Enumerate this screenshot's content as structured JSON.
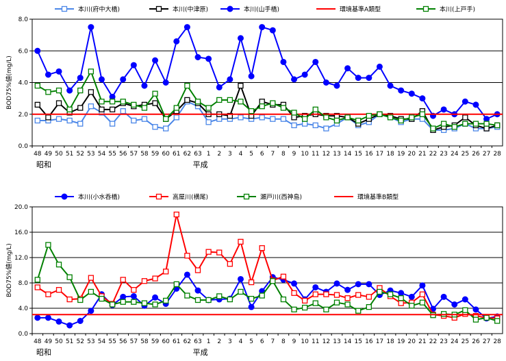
{
  "chart_data": [
    {
      "type": "line",
      "ylabel": "BOD75%値(mg/L)",
      "ylim": [
        0,
        8
      ],
      "yticks": [
        "0.0",
        "2.0",
        "4.0",
        "6.0",
        "8.0"
      ],
      "categories": [
        "48",
        "49",
        "50",
        "51",
        "52",
        "53",
        "54",
        "55",
        "56",
        "57",
        "58",
        "59",
        "60",
        "61",
        "62",
        "63",
        "1",
        "2",
        "3",
        "4",
        "5",
        "6",
        "7",
        "8",
        "9",
        "10",
        "11",
        "12",
        "13",
        "14",
        "15",
        "16",
        "17",
        "18",
        "19",
        "20",
        "21",
        "22",
        "23",
        "24",
        "25",
        "26",
        "27",
        "28"
      ],
      "era_labels": [
        "昭和",
        "平成"
      ],
      "grid": "horizontal",
      "series": [
        {
          "name": "本川(府中大橋)",
          "color": "#4a86e8",
          "marker": "square-open",
          "values": [
            1.6,
            1.6,
            1.7,
            1.6,
            1.4,
            2.5,
            2.1,
            1.4,
            2.2,
            1.6,
            1.7,
            1.2,
            1.1,
            1.8,
            2.8,
            2.5,
            1.5,
            1.7,
            1.7,
            1.8,
            1.7,
            1.8,
            1.7,
            1.7,
            1.3,
            1.4,
            1.3,
            1.1,
            1.4,
            1.8,
            1.3,
            1.5,
            2.0,
            1.8,
            1.5,
            1.7,
            1.7,
            1.0,
            1.0,
            1.1,
            1.4,
            1.1,
            1.1,
            1.2
          ]
        },
        {
          "name": "本川(中津原)",
          "color": "#000000",
          "marker": "square-open",
          "values": [
            2.6,
            1.8,
            2.7,
            2.1,
            2.4,
            3.4,
            2.3,
            2.3,
            2.7,
            2.5,
            2.6,
            2.7,
            1.7,
            2.2,
            2.9,
            2.7,
            2.0,
            2.0,
            1.9,
            3.8,
            1.9,
            2.8,
            2.6,
            2.6,
            1.8,
            1.9,
            2.0,
            1.9,
            1.9,
            1.8,
            1.4,
            1.7,
            2.0,
            1.9,
            1.7,
            1.7,
            2.2,
            1.0,
            1.2,
            1.3,
            1.8,
            1.3,
            1.1,
            1.3
          ]
        },
        {
          "name": "本川(山手橋)",
          "color": "#0000ff",
          "marker": "circle-filled",
          "values": [
            6.0,
            4.5,
            4.7,
            3.5,
            4.3,
            7.5,
            4.2,
            3.1,
            4.2,
            5.1,
            3.8,
            5.4,
            4.0,
            6.6,
            7.5,
            5.6,
            5.5,
            3.7,
            4.2,
            6.8,
            4.4,
            7.5,
            7.3,
            5.3,
            4.2,
            4.5,
            5.3,
            4.0,
            3.8,
            4.9,
            4.3,
            4.3,
            5.0,
            3.8,
            3.5,
            3.3,
            3.0,
            1.9,
            2.3,
            2.0,
            2.8,
            2.6,
            1.7,
            2.0
          ]
        },
        {
          "name": "環境基準A類型",
          "color": "#ff0000",
          "marker": "none",
          "constant": 2.0
        },
        {
          "name": "本川(上戸手)",
          "color": "#008000",
          "marker": "square-open",
          "values": [
            3.8,
            3.4,
            3.5,
            2.3,
            3.5,
            4.7,
            2.8,
            2.8,
            2.8,
            2.6,
            2.4,
            3.3,
            1.7,
            2.4,
            3.8,
            2.8,
            2.4,
            2.9,
            2.9,
            2.8,
            2.2,
            2.5,
            2.7,
            2.4,
            2.1,
            1.7,
            2.3,
            1.8,
            1.6,
            1.8,
            1.6,
            1.9,
            2.0,
            1.8,
            1.6,
            1.8,
            2.0,
            1.1,
            1.4,
            1.2,
            1.4,
            1.4,
            1.4,
            1.3
          ]
        }
      ]
    },
    {
      "type": "line",
      "ylabel": "BOD75%値(mg/L)",
      "ylim": [
        0,
        20
      ],
      "yticks": [
        "0.0",
        "4.0",
        "8.0",
        "12.0",
        "16.0",
        "20.0"
      ],
      "categories": [
        "48",
        "49",
        "50",
        "51",
        "52",
        "53",
        "54",
        "55",
        "56",
        "57",
        "58",
        "59",
        "60",
        "61",
        "62",
        "63",
        "1",
        "2",
        "3",
        "4",
        "5",
        "6",
        "7",
        "8",
        "9",
        "10",
        "11",
        "12",
        "13",
        "14",
        "15",
        "16",
        "17",
        "18",
        "19",
        "20",
        "21",
        "22",
        "23",
        "24",
        "25",
        "26",
        "27",
        "28"
      ],
      "era_labels": [
        "昭和",
        "平成"
      ],
      "grid": "horizontal",
      "series": [
        {
          "name": "本川(小水呑橋)",
          "color": "#0000ff",
          "marker": "circle-filled",
          "values": [
            2.5,
            2.5,
            1.9,
            1.3,
            2.0,
            3.6,
            6.2,
            4.5,
            5.8,
            5.9,
            4.4,
            5.7,
            4.7,
            7.1,
            9.3,
            6.8,
            5.3,
            5.4,
            5.5,
            8.6,
            4.2,
            6.7,
            8.9,
            8.5,
            7.9,
            5.4,
            7.3,
            6.6,
            7.9,
            6.9,
            7.8,
            7.8,
            6.1,
            6.8,
            6.4,
            5.8,
            7.6,
            3.9,
            5.8,
            4.6,
            5.4,
            3.8,
            2.4,
            2.7
          ]
        },
        {
          "name": "高屋川(横尾)",
          "color": "#ff0000",
          "marker": "square-open",
          "values": [
            7.3,
            6.2,
            6.9,
            5.4,
            5.5,
            8.8,
            5.9,
            4.7,
            8.5,
            6.9,
            8.3,
            8.7,
            9.8,
            18.8,
            12.3,
            10.0,
            12.9,
            12.8,
            11.0,
            14.5,
            8.1,
            13.5,
            8.4,
            9.0,
            6.4,
            5.2,
            6.2,
            6.2,
            6.1,
            5.6,
            6.1,
            5.8,
            7.2,
            5.9,
            4.8,
            4.9,
            6.2,
            3.0,
            2.8,
            2.5,
            3.1,
            2.8,
            2.5,
            2.4
          ]
        },
        {
          "name": "瀬戸川(西神島)",
          "color": "#008000",
          "marker": "square-open",
          "values": [
            8.5,
            14.0,
            10.9,
            8.9,
            5.3,
            6.6,
            5.5,
            4.6,
            5.0,
            5.0,
            4.8,
            4.6,
            5.2,
            7.8,
            6.0,
            5.3,
            5.3,
            5.9,
            5.4,
            6.6,
            5.5,
            6.0,
            8.3,
            5.4,
            3.8,
            4.1,
            4.8,
            3.8,
            4.9,
            4.6,
            3.6,
            4.2,
            6.6,
            6.2,
            5.6,
            4.4,
            4.9,
            2.9,
            3.1,
            3.0,
            3.7,
            2.2,
            2.5,
            2.0
          ]
        },
        {
          "name": "環境基準B類型",
          "color": "#ff0000",
          "marker": "none",
          "constant": 3.0
        }
      ]
    }
  ]
}
